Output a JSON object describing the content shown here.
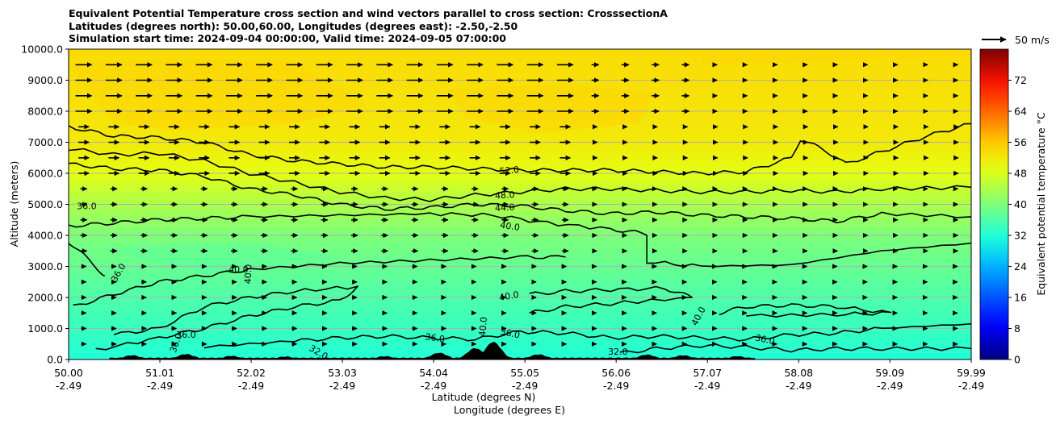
{
  "chart_data": {
    "type": "heatmap",
    "title_lines": [
      "Equivalent Potential Temperature cross section and wind vectors parallel to cross section: CrosssectionA",
      "Latitudes (degrees north): 50.00,60.00, Longitudes (degrees east): -2.50,-2.50",
      "Simulation start time: 2024-09-04 00:00:00, Valid time: 2024-09-05 07:00:00"
    ],
    "ylabel": "Altitude (meters)",
    "xlabel_lines": [
      "Latitude (degrees N)",
      "Longitude (degrees E)"
    ],
    "xlim": [
      50.0,
      59.99
    ],
    "ylim": [
      0,
      10000
    ],
    "x_ticks": [
      {
        "value": 50.0,
        "lat": "50.00",
        "lon": "-2.49"
      },
      {
        "value": 51.01,
        "lat": "51.01",
        "lon": "-2.49"
      },
      {
        "value": 52.02,
        "lat": "52.02",
        "lon": "-2.49"
      },
      {
        "value": 53.03,
        "lat": "53.03",
        "lon": "-2.49"
      },
      {
        "value": 54.04,
        "lat": "54.04",
        "lon": "-2.49"
      },
      {
        "value": 55.05,
        "lat": "55.05",
        "lon": "-2.49"
      },
      {
        "value": 56.06,
        "lat": "56.06",
        "lon": "-2.49"
      },
      {
        "value": 57.07,
        "lat": "57.07",
        "lon": "-2.49"
      },
      {
        "value": 58.08,
        "lat": "58.08",
        "lon": "-2.49"
      },
      {
        "value": 59.09,
        "lat": "59.09",
        "lon": "-2.49"
      },
      {
        "value": 59.99,
        "lat": "59.99",
        "lon": "-2.49"
      }
    ],
    "y_ticks": [
      {
        "value": 0,
        "label": "0.0"
      },
      {
        "value": 1000,
        "label": "1000.0"
      },
      {
        "value": 2000,
        "label": "2000.0"
      },
      {
        "value": 3000,
        "label": "3000.0"
      },
      {
        "value": 4000,
        "label": "4000.0"
      },
      {
        "value": 5000,
        "label": "5000.0"
      },
      {
        "value": 6000,
        "label": "6000.0"
      },
      {
        "value": 7000,
        "label": "7000.0"
      },
      {
        "value": 8000,
        "label": "8000.0"
      },
      {
        "value": 9000,
        "label": "9000.0"
      },
      {
        "value": 10000,
        "label": "10000.0"
      }
    ],
    "grid": "horizontal",
    "colorbar": {
      "label": "Equivalent potential temperature °C",
      "range": [
        0,
        80
      ],
      "ticks": [
        0,
        8,
        16,
        24,
        32,
        40,
        48,
        56,
        64,
        72
      ]
    },
    "wind_key": {
      "label": "50 m/s",
      "speed": 50
    },
    "theta_e_profile": [
      {
        "altitude": 0,
        "value": 32
      },
      {
        "altitude": 1000,
        "value": 34
      },
      {
        "altitude": 2000,
        "value": 36
      },
      {
        "altitude": 3000,
        "value": 38
      },
      {
        "altitude": 4000,
        "value": 40
      },
      {
        "altitude": 5000,
        "value": 44
      },
      {
        "altitude": 6000,
        "value": 49
      },
      {
        "altitude": 7000,
        "value": 52
      },
      {
        "altitude": 8000,
        "value": 53
      },
      {
        "altitude": 10000,
        "value": 54
      }
    ],
    "contours": [
      {
        "level": 52,
        "points": [
          [
            50.0,
            7500
          ],
          [
            50.5,
            7200
          ],
          [
            51.0,
            7150
          ],
          [
            51.5,
            7000
          ],
          [
            52.0,
            6600
          ],
          [
            52.5,
            6400
          ],
          [
            53.0,
            6300
          ],
          [
            53.5,
            6200
          ],
          [
            54.0,
            6200
          ],
          [
            54.5,
            6150
          ],
          [
            55.0,
            6100
          ],
          [
            55.5,
            6100
          ],
          [
            56.0,
            6100
          ],
          [
            56.5,
            6050
          ],
          [
            57.0,
            6000
          ],
          [
            57.5,
            6050
          ],
          [
            58.0,
            6500
          ],
          [
            58.1,
            7100
          ],
          [
            58.4,
            6700
          ],
          [
            58.6,
            6300
          ],
          [
            59.0,
            6700
          ],
          [
            59.5,
            7200
          ],
          [
            59.99,
            7600
          ]
        ]
      },
      {
        "level": 48,
        "points": [
          [
            50.0,
            6800
          ],
          [
            50.5,
            6600
          ],
          [
            51.0,
            6650
          ],
          [
            51.5,
            6400
          ],
          [
            52.0,
            6000
          ],
          [
            52.5,
            5700
          ],
          [
            53.0,
            5400
          ],
          [
            53.5,
            5200
          ],
          [
            54.0,
            5150
          ],
          [
            54.5,
            5300
          ],
          [
            55.0,
            5400
          ],
          [
            55.5,
            5500
          ],
          [
            56.0,
            5500
          ],
          [
            56.5,
            5450
          ],
          [
            57.0,
            5400
          ],
          [
            57.5,
            5400
          ],
          [
            58.0,
            5450
          ],
          [
            58.5,
            5400
          ],
          [
            59.0,
            5500
          ],
          [
            59.99,
            5550
          ]
        ]
      },
      {
        "level": 44,
        "points": [
          [
            50.0,
            6300
          ],
          [
            50.5,
            6150
          ],
          [
            51.0,
            6100
          ],
          [
            51.5,
            5900
          ],
          [
            52.0,
            5500
          ],
          [
            52.5,
            5300
          ],
          [
            53.0,
            5000
          ],
          [
            53.5,
            4850
          ],
          [
            54.0,
            4900
          ],
          [
            54.5,
            5000
          ],
          [
            55.0,
            4950
          ],
          [
            55.5,
            4800
          ],
          [
            56.0,
            4700
          ],
          [
            56.5,
            4750
          ],
          [
            57.0,
            4650
          ],
          [
            57.5,
            4600
          ],
          [
            58.0,
            4550
          ],
          [
            58.5,
            4450
          ],
          [
            59.0,
            4700
          ],
          [
            59.99,
            4600
          ]
        ]
      },
      {
        "level": 40,
        "points": [
          [
            50.0,
            4300
          ],
          [
            50.5,
            4400
          ],
          [
            51.0,
            4500
          ],
          [
            51.5,
            4550
          ],
          [
            52.0,
            4600
          ],
          [
            53.0,
            4650
          ],
          [
            54.0,
            4700
          ],
          [
            54.7,
            4650
          ],
          [
            55.3,
            4400
          ],
          [
            56.0,
            4200
          ],
          [
            56.4,
            4050
          ],
          [
            56.4,
            3150
          ],
          [
            57.0,
            3000
          ],
          [
            58.0,
            3050
          ],
          [
            59.0,
            3500
          ],
          [
            59.99,
            3750
          ]
        ]
      },
      {
        "level": 36,
        "points": [
          [
            50.0,
            3800
          ],
          [
            50.15,
            3400
          ],
          [
            50.3,
            3000
          ],
          [
            50.4,
            2700
          ]
        ]
      },
      {
        "level": 36,
        "points": [
          [
            50.05,
            1700
          ],
          [
            50.5,
            2100
          ],
          [
            51.0,
            2500
          ],
          [
            51.5,
            2700
          ],
          [
            52.0,
            2900
          ],
          [
            53.0,
            3100
          ],
          [
            54.0,
            3200
          ],
          [
            55.0,
            3300
          ],
          [
            55.5,
            3300
          ]
        ]
      },
      {
        "level": 36,
        "points": [
          [
            50.3,
            300
          ],
          [
            51.0,
            700
          ],
          [
            51.5,
            1000
          ],
          [
            52.0,
            1400
          ],
          [
            52.5,
            1700
          ],
          [
            53.0,
            1900
          ],
          [
            53.2,
            2350
          ],
          [
            52.5,
            2200
          ],
          [
            52.0,
            2000
          ],
          [
            51.5,
            1700
          ],
          [
            51.0,
            1000
          ],
          [
            50.5,
            800
          ]
        ]
      },
      {
        "level": 40,
        "points": [
          [
            55.1,
            2100
          ],
          [
            55.5,
            2200
          ],
          [
            56.0,
            2250
          ],
          [
            56.6,
            2300
          ],
          [
            56.9,
            2000
          ],
          [
            56.0,
            1800
          ],
          [
            55.5,
            1700
          ],
          [
            55.1,
            1500
          ]
        ]
      },
      {
        "level": 40,
        "points": [
          [
            57.2,
            1500
          ],
          [
            57.5,
            1700
          ],
          [
            58.0,
            1750
          ],
          [
            58.5,
            1700
          ],
          [
            59.1,
            1500
          ],
          [
            58.5,
            1450
          ],
          [
            57.5,
            1400
          ]
        ]
      },
      {
        "level": 36,
        "points": [
          [
            51.5,
            400
          ],
          [
            52.5,
            600
          ],
          [
            53.0,
            700
          ],
          [
            53.5,
            750
          ],
          [
            54.0,
            700
          ],
          [
            54.5,
            650
          ],
          [
            55.0,
            900
          ],
          [
            55.5,
            850
          ],
          [
            56.0,
            700
          ],
          [
            56.5,
            750
          ],
          [
            57.0,
            700
          ],
          [
            57.5,
            650
          ],
          [
            58.0,
            800
          ],
          [
            58.5,
            850
          ],
          [
            59.0,
            1000
          ],
          [
            59.99,
            1150
          ]
        ]
      },
      {
        "level": 36,
        "points": [
          [
            56.1,
            200
          ],
          [
            56.5,
            350
          ],
          [
            57.0,
            450
          ],
          [
            57.5,
            400
          ],
          [
            58.0,
            300
          ],
          [
            58.5,
            350
          ],
          [
            59.0,
            350
          ],
          [
            59.99,
            350
          ]
        ]
      }
    ],
    "contour_labels": [
      {
        "text": "52.0",
        "x": 54.88,
        "y": 6000,
        "angle": -5
      },
      {
        "text": "48.0",
        "x": 54.83,
        "y": 5200,
        "angle": -3
      },
      {
        "text": "44.0",
        "x": 54.83,
        "y": 4800,
        "angle": -3
      },
      {
        "text": "40.0",
        "x": 54.88,
        "y": 4200,
        "angle": 8
      },
      {
        "text": "36.0",
        "x": 50.2,
        "y": 4850,
        "angle": 0
      },
      {
        "text": "36.0",
        "x": 50.58,
        "y": 2750,
        "angle": -60
      },
      {
        "text": "40.0",
        "x": 51.88,
        "y": 2800,
        "angle": 0
      },
      {
        "text": "40.0",
        "x": 52.02,
        "y": 2750,
        "angle": -88
      },
      {
        "text": "40.0",
        "x": 54.88,
        "y": 1950,
        "angle": -10
      },
      {
        "text": "40.0",
        "x": 57.0,
        "y": 1350,
        "angle": -62
      },
      {
        "text": "40.0",
        "x": 54.62,
        "y": 1050,
        "angle": -85
      },
      {
        "text": "36.0",
        "x": 51.3,
        "y": 700,
        "angle": 0
      },
      {
        "text": "36.0",
        "x": 51.22,
        "y": 500,
        "angle": -70
      },
      {
        "text": "36.0",
        "x": 54.05,
        "y": 600,
        "angle": 8
      },
      {
        "text": "36.0",
        "x": 54.88,
        "y": 750,
        "angle": 12
      },
      {
        "text": "36.0",
        "x": 57.7,
        "y": 550,
        "angle": 12
      },
      {
        "text": "32.0",
        "x": 52.75,
        "y": 150,
        "angle": 30
      },
      {
        "text": "32.0",
        "x": 56.08,
        "y": 150,
        "angle": 0
      }
    ],
    "terrain_peaks": [
      {
        "x": 50.7,
        "height": 120
      },
      {
        "x": 51.3,
        "height": 160
      },
      {
        "x": 51.8,
        "height": 100
      },
      {
        "x": 52.4,
        "height": 80
      },
      {
        "x": 53.5,
        "height": 90
      },
      {
        "x": 54.1,
        "height": 200
      },
      {
        "x": 54.5,
        "height": 350
      },
      {
        "x": 54.7,
        "height": 550
      },
      {
        "x": 55.2,
        "height": 150
      },
      {
        "x": 56.4,
        "height": 140
      },
      {
        "x": 56.8,
        "height": 120
      },
      {
        "x": 57.4,
        "height": 90
      }
    ],
    "wind_vector_altitudes": [
      500,
      1000,
      1500,
      2000,
      2500,
      3000,
      3500,
      4000,
      4500,
      5000,
      5500,
      6000,
      6500,
      7000,
      7500,
      8000,
      8500,
      9000,
      9500
    ]
  }
}
